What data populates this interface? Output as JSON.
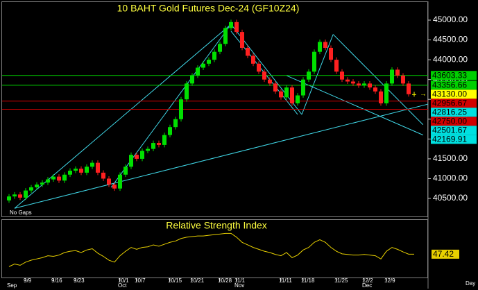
{
  "chart_data": [
    {
      "type": "candlestick",
      "title": "10 BAHT  Gold Futures Dec-24  (GF10Z24)",
      "categories": [
        null,
        null,
        null,
        "9/9",
        null,
        null,
        null,
        null,
        "9/16",
        null,
        null,
        null,
        "9/23",
        null,
        null,
        null,
        null,
        null,
        null,
        null,
        "10/1",
        null,
        null,
        "10/7",
        null,
        null,
        null,
        null,
        null,
        "10/15",
        null,
        null,
        null,
        "10/21",
        null,
        null,
        null,
        null,
        "10/28",
        null,
        null,
        "11/1",
        null,
        null,
        null,
        null,
        null,
        null,
        null,
        "11/11",
        null,
        null,
        null,
        "11/18",
        null,
        null,
        null,
        null,
        null,
        "11/25",
        null,
        null,
        null,
        null,
        "12/2",
        null,
        null,
        null,
        "12/9",
        null,
        null,
        null,
        null,
        null
      ],
      "months": [
        "Sep",
        null,
        null,
        null,
        null,
        null,
        null,
        null,
        null,
        null,
        null,
        null,
        null,
        null,
        null,
        null,
        null,
        null,
        null,
        null,
        "Oct",
        null,
        null,
        null,
        null,
        null,
        null,
        null,
        null,
        null,
        null,
        null,
        null,
        null,
        null,
        null,
        null,
        null,
        null,
        null,
        null,
        "Nov",
        null,
        null,
        null,
        null,
        null,
        null,
        null,
        null,
        null,
        null,
        null,
        null,
        null,
        null,
        null,
        null,
        null,
        null,
        null,
        null,
        null,
        null,
        "Dec",
        null,
        null,
        null,
        null,
        null,
        null,
        null,
        null,
        null
      ],
      "open": [
        40450,
        40550,
        40600,
        40520,
        40700,
        40780,
        40850,
        40900,
        40980,
        41050,
        40950,
        41100,
        41200,
        41250,
        41150,
        41300,
        41400,
        41150,
        41000,
        40850,
        40750,
        41100,
        41300,
        41600,
        41500,
        41700,
        41750,
        41900,
        41850,
        42100,
        42300,
        42500,
        43000,
        43400,
        43600,
        43800,
        43900,
        44000,
        44200,
        44400,
        44800,
        44950,
        44700,
        44300,
        44100,
        43900,
        43700,
        43500,
        43400,
        43200,
        43050,
        43300,
        42900,
        43100,
        43500,
        43700,
        44200,
        44450,
        44300,
        44000,
        43700,
        43500,
        43450,
        43400,
        43350,
        43400,
        43300,
        43200,
        42900,
        43400,
        43750,
        43600,
        43400,
        43130
      ],
      "high": [
        40610,
        40660,
        40660,
        40760,
        40840,
        40910,
        40960,
        41040,
        41110,
        41110,
        41160,
        41260,
        41310,
        41310,
        41360,
        41460,
        41460,
        41210,
        41060,
        40910,
        41160,
        41360,
        41660,
        41660,
        41760,
        41810,
        41960,
        41960,
        42160,
        42360,
        42560,
        43060,
        43460,
        43660,
        43860,
        43960,
        44060,
        44260,
        44460,
        44860,
        45010,
        45010,
        44760,
        44360,
        44160,
        43960,
        43760,
        43560,
        43460,
        43260,
        43360,
        43360,
        43160,
        43560,
        43760,
        44260,
        44510,
        44510,
        44360,
        44060,
        43760,
        43560,
        43510,
        43460,
        43460,
        43460,
        43360,
        43260,
        43460,
        43810,
        43810,
        43660,
        43460,
        43190
      ],
      "low": [
        40390,
        40490,
        40460,
        40460,
        40640,
        40720,
        40790,
        40840,
        40920,
        40890,
        40890,
        41040,
        41140,
        41090,
        41090,
        41240,
        41090,
        40940,
        40790,
        40690,
        40690,
        41040,
        41240,
        41440,
        41440,
        41640,
        41690,
        41790,
        41790,
        42040,
        42240,
        42440,
        42940,
        43340,
        43540,
        43740,
        43840,
        43940,
        44140,
        44340,
        44740,
        44640,
        44240,
        44040,
        43840,
        43640,
        43440,
        43340,
        43140,
        42990,
        42990,
        42840,
        42840,
        43040,
        43440,
        43640,
        44140,
        44240,
        43940,
        43640,
        43440,
        43390,
        43340,
        43290,
        43290,
        43240,
        43140,
        42840,
        42840,
        43340,
        43540,
        43340,
        43070,
        43070
      ],
      "close": [
        40550,
        40600,
        40520,
        40700,
        40780,
        40850,
        40900,
        40980,
        41050,
        40950,
        41100,
        41200,
        41250,
        41150,
        41300,
        41400,
        41150,
        41000,
        40850,
        40750,
        41100,
        41300,
        41600,
        41500,
        41700,
        41750,
        41900,
        41850,
        42100,
        42300,
        42500,
        43000,
        43400,
        43600,
        43800,
        43900,
        44000,
        44200,
        44400,
        44800,
        44950,
        44700,
        44300,
        44100,
        43900,
        43700,
        43500,
        43400,
        43200,
        43050,
        43300,
        42900,
        43100,
        43500,
        43700,
        44200,
        44450,
        44300,
        44000,
        43700,
        43500,
        43450,
        43400,
        43350,
        43400,
        43300,
        43200,
        42900,
        43400,
        43750,
        43600,
        43400,
        43130,
        43130
      ],
      "up_color": "#00e000",
      "down_color": "#ff2020",
      "unchanged_color": "#ffff00",
      "ylim": [
        40045,
        45455
      ],
      "yticks": [
        {
          "value": 40500,
          "label": "40500.00"
        },
        {
          "value": 41000,
          "label": "41000.00"
        },
        {
          "value": 41500,
          "label": "41500.00"
        },
        {
          "value": 42000,
          "label": "42000.00"
        },
        {
          "value": 42500,
          "label": "42500.00"
        },
        {
          "value": 43000,
          "label": "43000.00"
        },
        {
          "value": 43500,
          "label": "43500.00"
        },
        {
          "value": 44000,
          "label": "44000.00"
        },
        {
          "value": 44500,
          "label": "44500.00"
        },
        {
          "value": 45000,
          "label": "45000.00"
        }
      ],
      "levels": [
        {
          "value": 43603.33,
          "label": "43603.33",
          "color": "#00d000",
          "line": true
        },
        {
          "value": 43356.66,
          "label": "43356.66",
          "color": "#00d000",
          "line": true
        },
        {
          "value": 43130,
          "label": "43130.00",
          "color": "#ffff00",
          "line": false
        },
        {
          "value": 42956.67,
          "label": "42956.67",
          "color": "#d00000",
          "line": true
        },
        {
          "value": 42816.25,
          "label": "42816.25",
          "color": "#00e0e0",
          "line": false
        },
        {
          "value": 42750,
          "label": "42750.00",
          "color": "#d00000",
          "line": true
        },
        {
          "value": 42501.67,
          "label": "42501.67",
          "color": "#00e0e0",
          "line": false
        },
        {
          "value": 42169.91,
          "label": "42169.91",
          "color": "#00e0e0",
          "line": false
        }
      ],
      "trendlines": [
        [
          1,
          40250,
          75.5,
          42880
        ],
        [
          1,
          40250,
          40,
          44895
        ],
        [
          18.4,
          40780,
          40,
          44895
        ],
        [
          40,
          44895,
          52.75,
          42620
        ],
        [
          40,
          44720,
          52,
          42620
        ],
        [
          52.75,
          42620,
          58.4,
          44640
        ],
        [
          58.4,
          44640,
          74.6,
          42360
        ],
        [
          50,
          43600,
          74.6,
          42100
        ]
      ],
      "trendline_color": "#40d8e8",
      "annotation": "No Gaps",
      "x_axis_label": "Day"
    },
    {
      "type": "line",
      "title": "Relative Strength Index",
      "color": "#e8d000",
      "values": [
        28,
        32,
        30,
        35,
        38,
        40,
        42,
        45,
        44,
        46,
        50,
        52,
        53,
        50,
        54,
        56,
        49,
        44,
        38,
        35,
        45,
        52,
        58,
        55,
        58,
        59,
        62,
        60,
        63,
        66,
        68,
        72,
        74,
        75,
        76,
        76,
        77,
        78,
        79,
        80,
        80,
        74,
        66,
        62,
        58,
        55,
        52,
        50,
        47,
        45,
        50,
        42,
        46,
        54,
        58,
        66,
        70,
        66,
        58,
        52,
        48,
        47,
        46,
        46,
        47,
        46,
        45,
        40,
        52,
        58,
        55,
        51,
        47.42,
        47.42
      ],
      "current": 47.42,
      "ylim": [
        0,
        100
      ]
    }
  ]
}
